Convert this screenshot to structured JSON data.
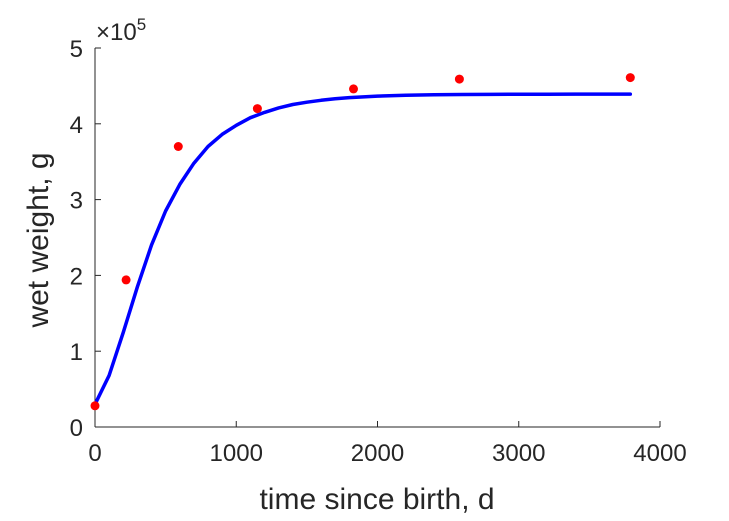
{
  "chart_data": {
    "type": "scatter",
    "title": "",
    "xlabel": "time since birth, d",
    "ylabel": "wet weight, g",
    "xlim": [
      0,
      4000
    ],
    "ylim": [
      0,
      500000
    ],
    "x_ticks": [
      0,
      1000,
      2000,
      3000,
      4000
    ],
    "x_tick_labels": [
      "0",
      "1000",
      "2000",
      "3000",
      "4000"
    ],
    "y_ticks": [
      0,
      100000,
      200000,
      300000,
      400000,
      500000
    ],
    "y_tick_labels": [
      "0",
      "1",
      "2",
      "3",
      "4",
      "5"
    ],
    "y_exponent": {
      "multiplier": "×10",
      "power": "5"
    },
    "grid": false,
    "legend": "none",
    "colors": {
      "data_points": "#ff0000",
      "fit_line": "#0000ff",
      "axes": "#262626"
    },
    "series": [
      {
        "type": "scatter",
        "x": [
          0,
          220,
          590,
          1150,
          1830,
          2580,
          3790
        ],
        "y": [
          28000,
          194000,
          370000,
          420000,
          446000,
          459000,
          461000
        ]
      },
      {
        "type": "line",
        "x": [
          0,
          100,
          200,
          300,
          400,
          500,
          600,
          700,
          800,
          900,
          1000,
          1100,
          1200,
          1300,
          1400,
          1500,
          1600,
          1700,
          1800,
          2000,
          2200,
          2400,
          2600,
          2800,
          3000,
          3200,
          3400,
          3600,
          3790
        ],
        "y": [
          30000,
          68000,
          125000,
          185000,
          240000,
          285000,
          320000,
          348000,
          370000,
          386000,
          398000,
          408000,
          415000,
          421000,
          425500,
          428500,
          431000,
          433000,
          434500,
          436500,
          437600,
          438200,
          438600,
          438800,
          439000,
          439100,
          439200,
          439200,
          439200
        ]
      }
    ]
  }
}
